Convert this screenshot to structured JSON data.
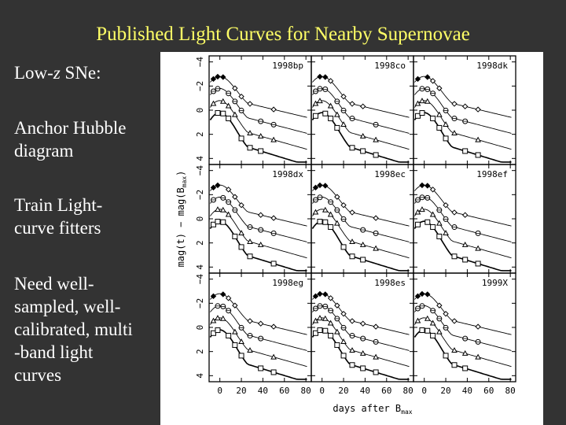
{
  "slide": {
    "title": "Published Light Curves for Nearby Supernovae",
    "bullets": [
      "Low-z SNe:",
      "Anchor Hubble\ndiagram",
      "Train Light-\ncurve fitters",
      "Need well-\nsampled, well-\ncalibrated, multi\n-band light\ncurves"
    ]
  },
  "chart_data": {
    "type": "scatter",
    "xlabel_text": "days after B",
    "xlabel_sub": "max",
    "ylabel_text": "mag(t) − mag(B",
    "ylabel_sub": "max",
    "ylabel_close": ")",
    "x_ticks": [
      "0",
      "20",
      "40",
      "60",
      "80"
    ],
    "y_ticks": [
      "−4",
      "−2",
      "0",
      "2",
      "4"
    ],
    "xlim": [
      -10,
      85
    ],
    "ylim": [
      -4.5,
      4.5
    ],
    "panels": [
      {
        "name": "1998bp"
      },
      {
        "name": "1998co"
      },
      {
        "name": "1998dk"
      },
      {
        "name": "1998dx"
      },
      {
        "name": "1998ec"
      },
      {
        "name": "1998ef"
      },
      {
        "name": "1998eg"
      },
      {
        "name": "1998es"
      },
      {
        "name": "1999X"
      }
    ],
    "bands": [
      {
        "marker": "diamond",
        "offset": -2.8
      },
      {
        "marker": "circle",
        "offset": -1.8
      },
      {
        "marker": "triangle",
        "offset": -0.8
      },
      {
        "marker": "square",
        "offset": 0.2
      }
    ]
  }
}
